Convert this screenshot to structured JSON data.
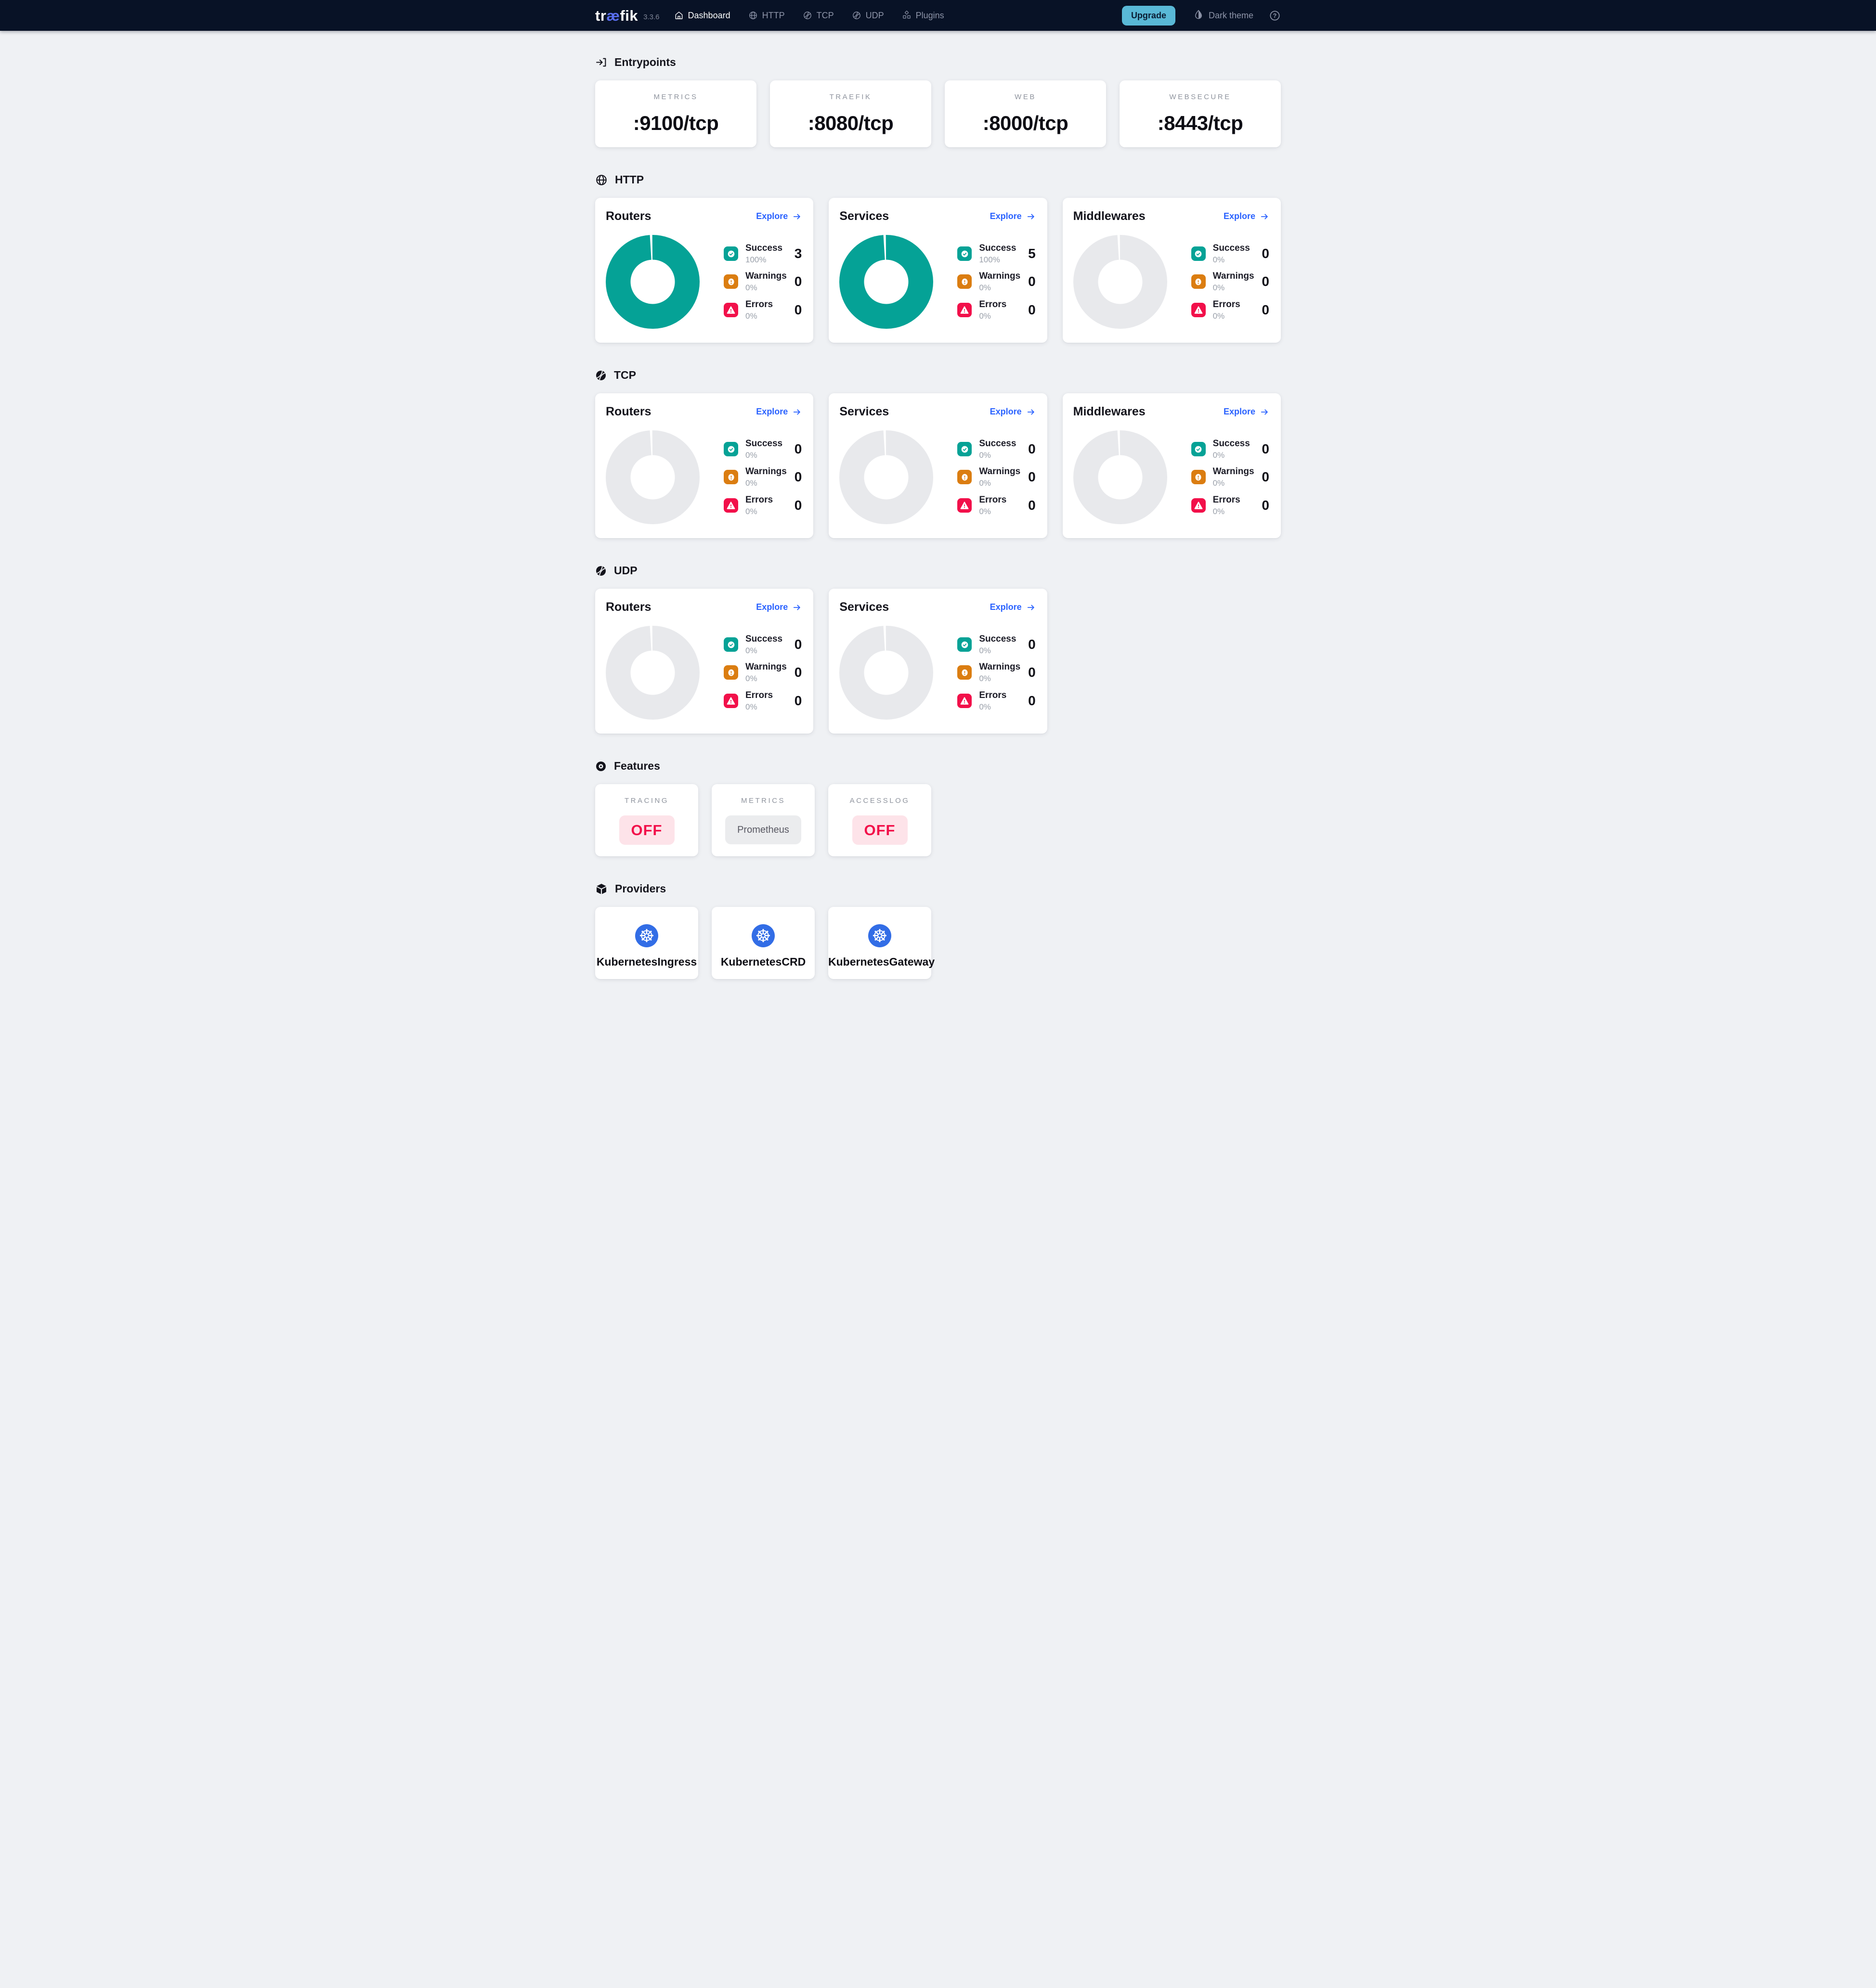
{
  "navbar": {
    "logo_parts": {
      "pre": "tr",
      "mid": "æ",
      "post": "fik"
    },
    "version": "3.3.6",
    "items": [
      {
        "label": "Dashboard",
        "icon": "home-icon",
        "active": true
      },
      {
        "label": "HTTP",
        "icon": "globe-icon",
        "active": false
      },
      {
        "label": "TCP",
        "icon": "ball-icon",
        "active": false
      },
      {
        "label": "UDP",
        "icon": "ball-icon",
        "active": false
      },
      {
        "label": "Plugins",
        "icon": "plugins-icon",
        "active": false
      }
    ],
    "upgrade_label": "Upgrade",
    "theme_toggle_label": "Dark theme",
    "help_label": "?"
  },
  "entrypoints": {
    "title": "Entrypoints",
    "icon": "login-icon",
    "cards": [
      {
        "label": "METRICS",
        "value": ":9100/tcp"
      },
      {
        "label": "TRAEFIK",
        "value": ":8080/tcp"
      },
      {
        "label": "WEB",
        "value": ":8000/tcp"
      },
      {
        "label": "WEBSECURE",
        "value": ":8443/tcp"
      }
    ]
  },
  "protocol_sections": [
    {
      "id": "http",
      "title": "HTTP",
      "icon": "globe-icon",
      "cards": [
        {
          "title": "Routers",
          "explore_label": "Explore",
          "donut_pct": 100,
          "rows": [
            {
              "type": "success",
              "label": "Success",
              "pct": "100%",
              "count": "3"
            },
            {
              "type": "warning",
              "label": "Warnings",
              "pct": "0%",
              "count": "0"
            },
            {
              "type": "error",
              "label": "Errors",
              "pct": "0%",
              "count": "0"
            }
          ]
        },
        {
          "title": "Services",
          "explore_label": "Explore",
          "donut_pct": 100,
          "rows": [
            {
              "type": "success",
              "label": "Success",
              "pct": "100%",
              "count": "5"
            },
            {
              "type": "warning",
              "label": "Warnings",
              "pct": "0%",
              "count": "0"
            },
            {
              "type": "error",
              "label": "Errors",
              "pct": "0%",
              "count": "0"
            }
          ]
        },
        {
          "title": "Middlewares",
          "explore_label": "Explore",
          "donut_pct": 0,
          "rows": [
            {
              "type": "success",
              "label": "Success",
              "pct": "0%",
              "count": "0"
            },
            {
              "type": "warning",
              "label": "Warnings",
              "pct": "0%",
              "count": "0"
            },
            {
              "type": "error",
              "label": "Errors",
              "pct": "0%",
              "count": "0"
            }
          ]
        }
      ]
    },
    {
      "id": "tcp",
      "title": "TCP",
      "icon": "ball-icon",
      "cards": [
        {
          "title": "Routers",
          "explore_label": "Explore",
          "donut_pct": 0,
          "rows": [
            {
              "type": "success",
              "label": "Success",
              "pct": "0%",
              "count": "0"
            },
            {
              "type": "warning",
              "label": "Warnings",
              "pct": "0%",
              "count": "0"
            },
            {
              "type": "error",
              "label": "Errors",
              "pct": "0%",
              "count": "0"
            }
          ]
        },
        {
          "title": "Services",
          "explore_label": "Explore",
          "donut_pct": 0,
          "rows": [
            {
              "type": "success",
              "label": "Success",
              "pct": "0%",
              "count": "0"
            },
            {
              "type": "warning",
              "label": "Warnings",
              "pct": "0%",
              "count": "0"
            },
            {
              "type": "error",
              "label": "Errors",
              "pct": "0%",
              "count": "0"
            }
          ]
        },
        {
          "title": "Middlewares",
          "explore_label": "Explore",
          "donut_pct": 0,
          "rows": [
            {
              "type": "success",
              "label": "Success",
              "pct": "0%",
              "count": "0"
            },
            {
              "type": "warning",
              "label": "Warnings",
              "pct": "0%",
              "count": "0"
            },
            {
              "type": "error",
              "label": "Errors",
              "pct": "0%",
              "count": "0"
            }
          ]
        }
      ]
    },
    {
      "id": "udp",
      "title": "UDP",
      "icon": "ball-icon",
      "cards": [
        {
          "title": "Routers",
          "explore_label": "Explore",
          "donut_pct": 0,
          "rows": [
            {
              "type": "success",
              "label": "Success",
              "pct": "0%",
              "count": "0"
            },
            {
              "type": "warning",
              "label": "Warnings",
              "pct": "0%",
              "count": "0"
            },
            {
              "type": "error",
              "label": "Errors",
              "pct": "0%",
              "count": "0"
            }
          ]
        },
        {
          "title": "Services",
          "explore_label": "Explore",
          "donut_pct": 0,
          "rows": [
            {
              "type": "success",
              "label": "Success",
              "pct": "0%",
              "count": "0"
            },
            {
              "type": "warning",
              "label": "Warnings",
              "pct": "0%",
              "count": "0"
            },
            {
              "type": "error",
              "label": "Errors",
              "pct": "0%",
              "count": "0"
            }
          ]
        }
      ]
    }
  ],
  "features": {
    "title": "Features",
    "icon": "features-icon",
    "cards": [
      {
        "label": "TRACING",
        "value": "OFF",
        "state": "off"
      },
      {
        "label": "METRICS",
        "value": "Prometheus",
        "state": "neutral"
      },
      {
        "label": "ACCESSLOG",
        "value": "OFF",
        "state": "off"
      }
    ]
  },
  "providers": {
    "title": "Providers",
    "icon": "providers-icon",
    "cards": [
      {
        "name": "KubernetesIngress",
        "icon": "kubernetes-icon"
      },
      {
        "name": "KubernetesCRD",
        "icon": "kubernetes-icon"
      },
      {
        "name": "KubernetesGateway",
        "icon": "kubernetes-icon"
      }
    ]
  },
  "colors": {
    "navbar_bg": "#081226",
    "page_bg": "#eff1f4",
    "accent_link_blue": "#2a62ff",
    "success_teal": "#05a296",
    "warning_orange": "#db7d11",
    "error_red": "#f2104a",
    "kubernetes_blue": "#326de6",
    "upgrade_button_bg": "#59b8d6",
    "donut_empty_gray": "#e8e9ec",
    "off_pill_bg": "#fde3e9",
    "off_pill_text": "#f2104a",
    "logo_ae_blue": "#5a6ff0"
  }
}
